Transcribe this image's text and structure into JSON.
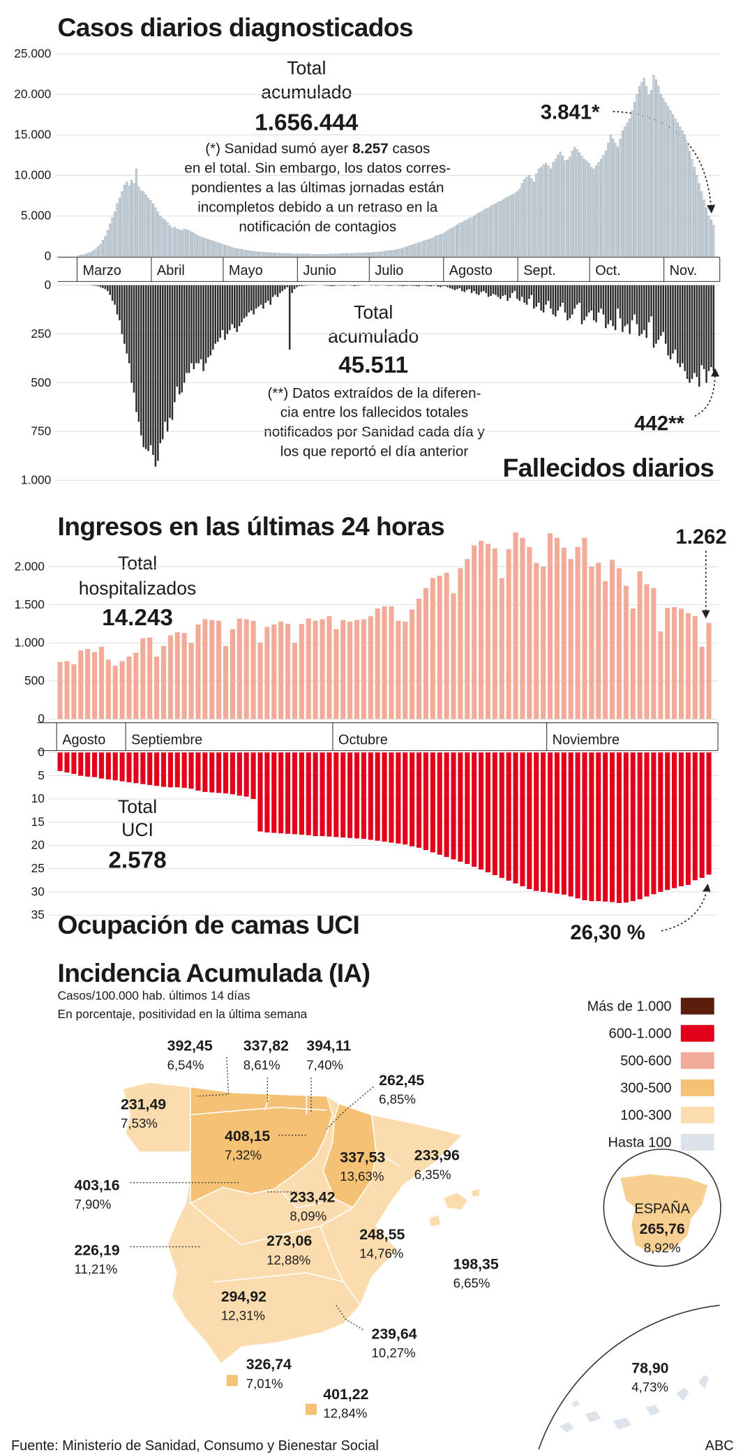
{
  "chart_data": [
    {
      "type": "bar",
      "title": "Casos diarios diagnosticados",
      "color": "#c9d3dc",
      "grid": true,
      "ylim": [
        0,
        25000
      ],
      "yticks": [
        0,
        {
          "value": 5000,
          "label": "5.000"
        },
        {
          "value": 10000,
          "label": "10.000"
        },
        {
          "value": 15000,
          "label": "15.000"
        },
        {
          "value": 20000,
          "label": "20.000"
        },
        {
          "value": 25000,
          "label": "25.000"
        }
      ],
      "total_label": [
        "Total",
        "acumulado"
      ],
      "total": "1.656.444",
      "note": [
        [
          "(*) Sanidad sumó ayer ",
          "8.257",
          " casos"
        ],
        "en el total. Sin embargo, los datos corres-",
        "pondientes a las últimas jornadas están",
        "incompletos debido a un retraso en la",
        "notificación de contagios"
      ],
      "annotation": "3.841*",
      "categories": [
        "Marzo",
        null,
        null,
        null,
        null,
        null,
        null,
        null,
        null,
        null,
        null,
        null,
        null,
        null,
        null,
        null,
        null,
        null,
        null,
        null,
        null,
        null,
        null,
        null,
        null,
        null,
        null,
        null,
        null,
        null,
        null,
        "Abril",
        null,
        null,
        null,
        null,
        null,
        null,
        null,
        null,
        null,
        null,
        null,
        null,
        null,
        null,
        null,
        null,
        null,
        null,
        null,
        null,
        null,
        null,
        null,
        null,
        null,
        null,
        null,
        null,
        null,
        "Mayo",
        null,
        null,
        null,
        null,
        null,
        null,
        null,
        null,
        null,
        null,
        null,
        null,
        null,
        null,
        null,
        null,
        null,
        null,
        null,
        null,
        null,
        null,
        null,
        null,
        null,
        null,
        null,
        null,
        null,
        null,
        "Junio",
        null,
        null,
        null,
        null,
        null,
        null,
        null,
        null,
        null,
        null,
        null,
        null,
        null,
        null,
        null,
        null,
        null,
        null,
        null,
        null,
        null,
        null,
        null,
        null,
        null,
        null,
        null,
        null,
        null,
        "Julio",
        null,
        null,
        null,
        null,
        null,
        null,
        null,
        null,
        null,
        null,
        null,
        null,
        null,
        null,
        null,
        null,
        null,
        null,
        null,
        null,
        null,
        null,
        null,
        null,
        null,
        null,
        null,
        null,
        null,
        null,
        "Agosto",
        null,
        null,
        null,
        null,
        null,
        null,
        null,
        null,
        null,
        null,
        null,
        null,
        null,
        null,
        null,
        null,
        null,
        null,
        null,
        null,
        null,
        null,
        null,
        null,
        null,
        null,
        null,
        null,
        null,
        null,
        "Sept.",
        null,
        null,
        null,
        null,
        null,
        null,
        null,
        null,
        null,
        null,
        null,
        null,
        null,
        null,
        null,
        null,
        null,
        null,
        null,
        null,
        null,
        null,
        null,
        null,
        null,
        null,
        null,
        null,
        null,
        "Oct.",
        null,
        null,
        null,
        null,
        null,
        null,
        null,
        null,
        null,
        null,
        null,
        null,
        null,
        null,
        null,
        null,
        null,
        null,
        null,
        null,
        null,
        null,
        null,
        null,
        null,
        null,
        null,
        null,
        null,
        null,
        "Nov.",
        null,
        null,
        null,
        null,
        null,
        null,
        null,
        null,
        null,
        null,
        null,
        null,
        null,
        null,
        null,
        null,
        null,
        null,
        null,
        null
      ],
      "values": [
        100,
        150,
        200,
        300,
        400,
        500,
        700,
        900,
        1200,
        1500,
        2000,
        2500,
        3200,
        4000,
        4800,
        5500,
        6500,
        7200,
        8000,
        8800,
        9200,
        8700,
        9400,
        9000,
        10800,
        8600,
        8100,
        8000,
        7600,
        7200,
        6900,
        6500,
        6000,
        5500,
        5000,
        4700,
        4500,
        4200,
        3800,
        3500,
        3600,
        3400,
        3300,
        3200,
        3400,
        3300,
        3200,
        3000,
        2900,
        2700,
        2500,
        2400,
        2300,
        2200,
        2100,
        2000,
        1900,
        1800,
        1700,
        1600,
        1500,
        1400,
        1300,
        1200,
        1100,
        1000,
        950,
        900,
        850,
        800,
        750,
        700,
        650,
        600,
        600,
        550,
        550,
        500,
        500,
        450,
        450,
        450,
        400,
        400,
        400,
        350,
        350,
        350,
        350,
        300,
        300,
        300,
        300,
        300,
        300,
        300,
        300,
        250,
        250,
        250,
        250,
        250,
        250,
        250,
        250,
        300,
        300,
        300,
        300,
        300,
        350,
        350,
        350,
        350,
        350,
        350,
        400,
        400,
        400,
        400,
        450,
        450,
        450,
        500,
        500,
        550,
        550,
        600,
        650,
        700,
        700,
        750,
        800,
        850,
        900,
        1000,
        1100,
        1200,
        1300,
        1400,
        1500,
        1600,
        1700,
        1800,
        1900,
        2000,
        2100,
        2200,
        2300,
        2500,
        2600,
        2700,
        2800,
        3000,
        3200,
        3400,
        3500,
        3700,
        3900,
        4100,
        4200,
        4400,
        4500,
        4700,
        4800,
        5000,
        5200,
        5400,
        5500,
        5700,
        5900,
        6000,
        6200,
        6400,
        6500,
        6700,
        6800,
        7000,
        7200,
        7300,
        7500,
        7600,
        7800,
        8000,
        8300,
        9000,
        9500,
        9800,
        10000,
        9600,
        9200,
        10200,
        10800,
        11000,
        11300,
        11500,
        11200,
        10800,
        11600,
        12000,
        12500,
        12900,
        12400,
        11800,
        11900,
        12300,
        13000,
        13500,
        13200,
        12800,
        12400,
        12000,
        11800,
        11500,
        11000,
        10800,
        11200,
        11600,
        12000,
        12500,
        13000,
        14000,
        15000,
        14500,
        14000,
        13500,
        14500,
        15500,
        16000,
        16500,
        17000,
        18000,
        19000,
        20000,
        21000,
        21500,
        22000,
        21000,
        20000,
        20500,
        22400,
        21800,
        21000,
        20000,
        19500,
        19000,
        18500,
        18000,
        17500,
        17000,
        16500,
        16000,
        15500,
        15000,
        14000,
        13000,
        12000,
        11000,
        10000,
        9000,
        8000,
        7000,
        6000,
        5000,
        4500,
        3841
      ]
    },
    {
      "type": "bar",
      "title": "Fallecidos diarios",
      "color": "#2a2a2a",
      "grid": true,
      "y_inverted": true,
      "ylim": [
        0,
        1000
      ],
      "yticks": [
        0,
        250,
        500,
        750,
        {
          "value": 1000,
          "label": "1.000"
        }
      ],
      "total_label": [
        "Total",
        "acumulado"
      ],
      "total": "45.511",
      "note": [
        "(**) Datos extraídos de la diferen-",
        "cia entre los fallecidos totales",
        "notificados por Sanidad cada día y",
        "los que reportó el día anterior"
      ],
      "annotation": "442**",
      "values": [
        0,
        0,
        0,
        0,
        0,
        1,
        2,
        3,
        5,
        10,
        15,
        20,
        30,
        50,
        80,
        100,
        150,
        180,
        250,
        300,
        350,
        400,
        500,
        550,
        650,
        700,
        770,
        830,
        840,
        850,
        820,
        870,
        930,
        900,
        810,
        790,
        700,
        750,
        680,
        690,
        600,
        520,
        560,
        550,
        500,
        450,
        450,
        400,
        430,
        400,
        400,
        380,
        440,
        400,
        370,
        360,
        330,
        300,
        290,
        270,
        230,
        280,
        250,
        230,
        200,
        220,
        240,
        210,
        190,
        170,
        160,
        140,
        130,
        150,
        120,
        110,
        100,
        120,
        90,
        80,
        100,
        60,
        50,
        60,
        40,
        30,
        20,
        10,
        330,
        40,
        20,
        10,
        5,
        5,
        3,
        2,
        1,
        1,
        1,
        0,
        0,
        0,
        1,
        2,
        3,
        5,
        5,
        3,
        2,
        2,
        3,
        2,
        1,
        1,
        2,
        5,
        3,
        2,
        1,
        0,
        0,
        0,
        2,
        1,
        3,
        2,
        1,
        1,
        2,
        3,
        4,
        2,
        1,
        2,
        3,
        5,
        4,
        3,
        2,
        3,
        4,
        5,
        6,
        3,
        2,
        4,
        5,
        6,
        3,
        2,
        8,
        10,
        5,
        5,
        10,
        15,
        20,
        25,
        20,
        15,
        30,
        35,
        25,
        20,
        40,
        30,
        45,
        50,
        35,
        30,
        40,
        60,
        55,
        45,
        50,
        60,
        70,
        55,
        50,
        80,
        65,
        40,
        30,
        70,
        80,
        60,
        90,
        100,
        70,
        50,
        120,
        110,
        90,
        130,
        140,
        100,
        80,
        120,
        150,
        160,
        130,
        110,
        90,
        140,
        180,
        170,
        150,
        120,
        100,
        90,
        200,
        180,
        160,
        140,
        130,
        180,
        190,
        140,
        120,
        150,
        220,
        200,
        180,
        210,
        230,
        120,
        170,
        240,
        210,
        200,
        250,
        180,
        150,
        200,
        260,
        250,
        230,
        270,
        190,
        160,
        320,
        300,
        280,
        260,
        240,
        300,
        360,
        380,
        350,
        330,
        400,
        420,
        400,
        440,
        480,
        500,
        480,
        450,
        470,
        520,
        410,
        430,
        500,
        440,
        420,
        442
      ]
    },
    {
      "type": "bar",
      "title": "Ingresos en las últimas 24 horas",
      "color": "#f2ab98",
      "grid": true,
      "ylim": [
        0,
        2500
      ],
      "yticks": [
        0,
        500,
        {
          "value": 1000,
          "label": "1.000"
        },
        {
          "value": 1500,
          "label": "1.500"
        },
        {
          "value": 2000,
          "label": "2.000"
        }
      ],
      "total_label": [
        "Total",
        "hospitalizados"
      ],
      "total": "14.243",
      "annotation": "1.262",
      "categories": [
        "Agosto",
        null,
        null,
        null,
        null,
        null,
        null,
        null,
        null,
        null,
        "Septiembre",
        null,
        null,
        null,
        null,
        null,
        null,
        null,
        null,
        null,
        null,
        null,
        null,
        null,
        null,
        null,
        null,
        null,
        null,
        null,
        null,
        null,
        null,
        null,
        null,
        null,
        null,
        null,
        null,
        null,
        "Octubre",
        null,
        null,
        null,
        null,
        null,
        null,
        null,
        null,
        null,
        null,
        null,
        null,
        null,
        null,
        null,
        null,
        null,
        null,
        null,
        null,
        null,
        null,
        null,
        null,
        null,
        null,
        null,
        null,
        null,
        null,
        "Noviembre",
        null,
        null,
        null,
        null,
        null,
        null,
        null,
        null,
        null,
        null,
        null,
        null,
        null,
        null,
        null,
        null,
        null,
        null,
        null,
        null,
        null,
        null,
        null
      ],
      "values": [
        750,
        760,
        720,
        900,
        920,
        880,
        950,
        780,
        700,
        760,
        820,
        870,
        1060,
        1070,
        820,
        960,
        1100,
        1140,
        1130,
        1000,
        1240,
        1310,
        1300,
        1290,
        960,
        1180,
        1320,
        1310,
        1290,
        1000,
        1210,
        1240,
        1280,
        1250,
        1000,
        1250,
        1320,
        1290,
        1310,
        1350,
        1180,
        1300,
        1280,
        1300,
        1310,
        1350,
        1450,
        1480,
        1480,
        1290,
        1280,
        1440,
        1580,
        1720,
        1850,
        1880,
        1920,
        1650,
        1980,
        2100,
        2280,
        2340,
        2300,
        2240,
        1850,
        2230,
        2450,
        2380,
        2260,
        2050,
        2000,
        2440,
        2380,
        2250,
        2100,
        2260,
        2380,
        2000,
        2050,
        1810,
        2090,
        1980,
        1750,
        1450,
        1940,
        1770,
        1720,
        1150,
        1460,
        1470,
        1450,
        1390,
        1350,
        950,
        1262
      ]
    },
    {
      "type": "bar",
      "title": "Ocupación de camas UCI",
      "color": "#e3001b",
      "grid": true,
      "y_inverted": true,
      "ylim": [
        0,
        35
      ],
      "yticks": [
        0,
        5,
        10,
        15,
        20,
        25,
        30,
        35
      ],
      "total_label": [
        "Total",
        "UCI"
      ],
      "total": "2.578",
      "annotation": "26,30 %",
      "values": [
        4.0,
        4.3,
        4.6,
        5.0,
        5.2,
        5.3,
        5.6,
        5.8,
        6.0,
        6.2,
        6.4,
        6.6,
        6.8,
        7.0,
        7.2,
        7.4,
        7.5,
        7.5,
        7.6,
        7.8,
        8.2,
        8.5,
        8.6,
        8.7,
        8.8,
        9.0,
        9.3,
        9.5,
        10.0,
        17.0,
        17.2,
        17.3,
        17.4,
        17.5,
        17.6,
        17.7,
        17.8,
        18.0,
        18.0,
        18.1,
        18.2,
        18.3,
        18.4,
        18.5,
        18.6,
        18.8,
        19.0,
        19.2,
        19.4,
        19.6,
        19.8,
        20.2,
        20.5,
        21.0,
        21.5,
        22.0,
        22.5,
        23.0,
        23.5,
        24.0,
        24.6,
        25.2,
        25.8,
        26.4,
        27.0,
        27.6,
        28.2,
        28.8,
        29.4,
        29.8,
        30.0,
        30.2,
        30.4,
        30.6,
        31.0,
        31.4,
        31.8,
        32.0,
        32.0,
        32.1,
        32.2,
        32.4,
        32.3,
        32.0,
        31.6,
        31.0,
        30.5,
        30.0,
        29.6,
        29.2,
        28.8,
        28.5,
        27.5,
        27.0,
        26.3
      ]
    }
  ],
  "map": {
    "title": "Incidencia Acumulada (IA)",
    "subtitle": [
      "Casos/100.000 hab. últimos 14 días",
      "En porcentaje, positividad en la última semana"
    ],
    "legend": [
      {
        "label": "Más de 1.000",
        "color": "#5a1f0c"
      },
      {
        "label": "600-1.000",
        "color": "#e3001b"
      },
      {
        "label": "500-600",
        "color": "#f2ab98"
      },
      {
        "label": "300-500",
        "color": "#f5c275"
      },
      {
        "label": "100-300",
        "color": "#fbdcae"
      },
      {
        "label": "Hasta 100",
        "color": "#dde3ea"
      }
    ],
    "regions": [
      {
        "value": "392,45",
        "positivity": "6,54%"
      },
      {
        "value": "337,82",
        "positivity": "8,61%"
      },
      {
        "value": "394,11",
        "positivity": "7,40%"
      },
      {
        "value": "262,45",
        "positivity": "6,85%"
      },
      {
        "value": "231,49",
        "positivity": "7,53%"
      },
      {
        "value": "408,15",
        "positivity": "7,32%"
      },
      {
        "value": "337,53",
        "positivity": "13,63%"
      },
      {
        "value": "233,96",
        "positivity": "6,35%"
      },
      {
        "value": "403,16",
        "positivity": "7,90%"
      },
      {
        "value": "233,42",
        "positivity": "8,09%"
      },
      {
        "value": "273,06",
        "positivity": "12,88%"
      },
      {
        "value": "248,55",
        "positivity": "14,76%"
      },
      {
        "value": "198,35",
        "positivity": "6,65%"
      },
      {
        "value": "226,19",
        "positivity": "11,21%"
      },
      {
        "value": "294,92",
        "positivity": "12,31%"
      },
      {
        "value": "239,64",
        "positivity": "10,27%"
      },
      {
        "value": "326,74",
        "positivity": "7,01%"
      },
      {
        "value": "401,22",
        "positivity": "12,84%"
      },
      {
        "value": "78,90",
        "positivity": "4,73%"
      }
    ],
    "spain": {
      "name": "ESPAÑA",
      "value": "265,76",
      "positivity": "8,92%"
    }
  },
  "source": "Fuente: Ministerio de Sanidad, Consumo y Bienestar Social",
  "brand": "ABC"
}
